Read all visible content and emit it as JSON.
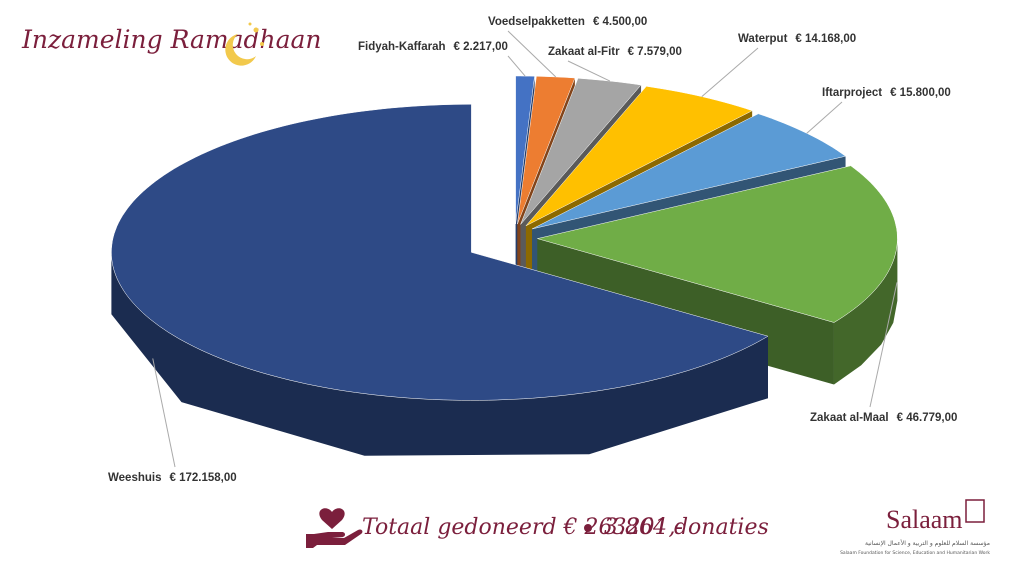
{
  "chart_data": {
    "type": "pie3d",
    "title": "Inzameling Ramadhaan",
    "categories": [
      "Fidyah-Kaffarah",
      "Voedselpakketten",
      "Zakaat al-Fitr",
      "Waterput",
      "Iftarproject",
      "Zakaat al-Maal",
      "Weeshuis"
    ],
    "values": [
      2217,
      4500,
      7579,
      14168,
      15800,
      46779,
      172158
    ],
    "value_labels": [
      "€ 2.217,00",
      "€ 4.500,00",
      "€ 7.579,00",
      "€ 14.168,00",
      "€ 15.800,00",
      "€ 46.779,00",
      "€ 172.158,00"
    ],
    "colors": [
      "#4472c4",
      "#ed7d31",
      "#a5a5a5",
      "#ffc000",
      "#5b9bd5",
      "#70ad47",
      "#2e4a86"
    ],
    "total_text": "Totaal gedoneerd € 263201,-",
    "donations_text": "3.864 donaties",
    "logo": "Salaam",
    "logo_arabic": "مؤسسة السلام للعلوم و التربية و الأعمال الإنسانية",
    "logo_subtitle": "Salaam Foundation for Science, Education and Humanitarian Work"
  }
}
